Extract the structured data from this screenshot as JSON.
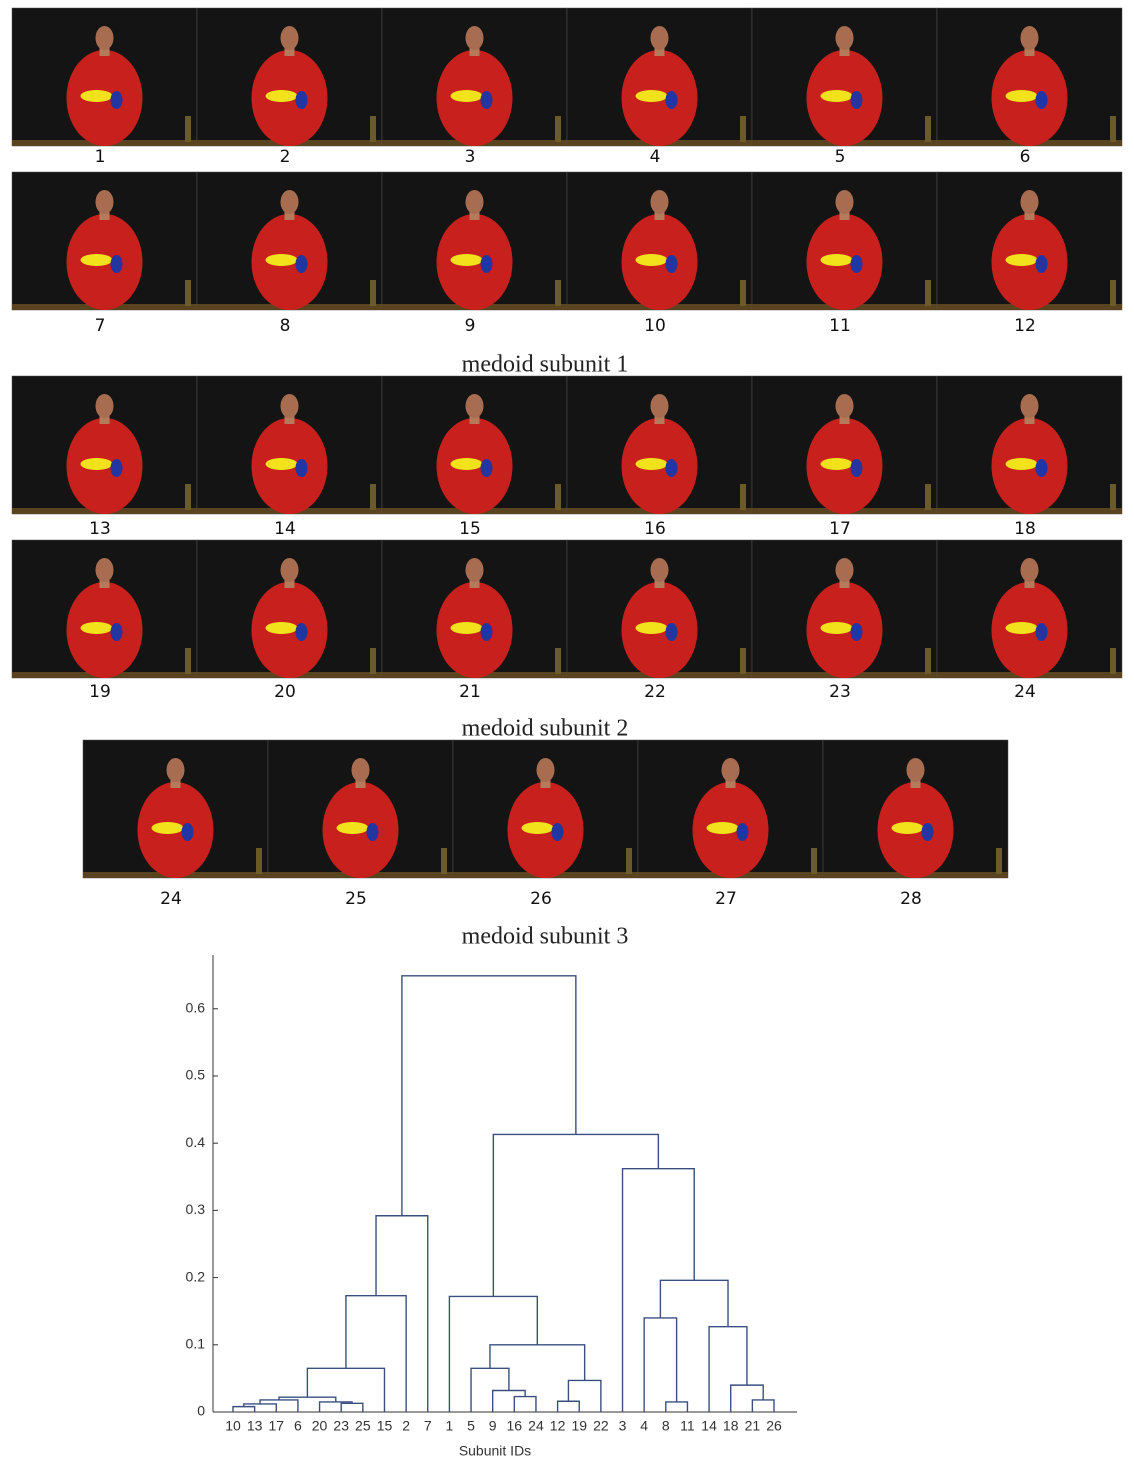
{
  "figure": {
    "groups": [
      {
        "rows": [
          [
            1,
            2,
            3,
            4,
            5,
            6
          ],
          [
            7,
            8,
            9,
            10,
            11,
            12
          ]
        ],
        "caption": "medoid subunit 1"
      },
      {
        "rows": [
          [
            13,
            14,
            15,
            16,
            17,
            18
          ],
          [
            19,
            20,
            21,
            22,
            23,
            24
          ]
        ],
        "caption": "medoid subunit 2"
      },
      {
        "rows": [
          [
            24,
            25,
            26,
            27,
            28
          ]
        ],
        "caption": "medoid subunit 3"
      }
    ]
  },
  "chart_data": {
    "type": "dendrogram",
    "xlabel": "Subunit IDs",
    "color": "#3a4f80",
    "leaves": [
      "10",
      "13",
      "17",
      "6",
      "20",
      "23",
      "25",
      "15",
      "2",
      "7",
      "1",
      "5",
      "9",
      "16",
      "24",
      "12",
      "19",
      "22",
      "3",
      "4",
      "8",
      "11",
      "14",
      "18",
      "21",
      "26"
    ],
    "links": [
      {
        "children": [
          0,
          1
        ],
        "height": 0.008
      },
      {
        "children": [
          26,
          2
        ],
        "height": 0.012
      },
      {
        "children": [
          27,
          3
        ],
        "height": 0.018
      },
      {
        "children": [
          5,
          6
        ],
        "height": 0.013
      },
      {
        "children": [
          4,
          29
        ],
        "height": 0.015
      },
      {
        "children": [
          28,
          30
        ],
        "height": 0.022
      },
      {
        "children": [
          31,
          7
        ],
        "height": 0.065
      },
      {
        "children": [
          32,
          8
        ],
        "height": 0.173
      },
      {
        "children": [
          33,
          9
        ],
        "height": 0.292
      },
      {
        "children": [
          13,
          14
        ],
        "height": 0.023
      },
      {
        "children": [
          12,
          35
        ],
        "height": 0.032
      },
      {
        "children": [
          11,
          36
        ],
        "height": 0.065
      },
      {
        "children": [
          15,
          16
        ],
        "height": 0.016
      },
      {
        "children": [
          38,
          17
        ],
        "height": 0.047
      },
      {
        "children": [
          37,
          39
        ],
        "height": 0.1
      },
      {
        "children": [
          10,
          40
        ],
        "height": 0.172
      },
      {
        "children": [
          20,
          21
        ],
        "height": 0.015
      },
      {
        "children": [
          19,
          42
        ],
        "height": 0.14
      },
      {
        "children": [
          24,
          25
        ],
        "height": 0.018
      },
      {
        "children": [
          23,
          44
        ],
        "height": 0.04
      },
      {
        "children": [
          22,
          45
        ],
        "height": 0.127
      },
      {
        "children": [
          43,
          46
        ],
        "height": 0.196
      },
      {
        "children": [
          18,
          47
        ],
        "height": 0.362
      },
      {
        "children": [
          41,
          48
        ],
        "height": 0.413
      },
      {
        "children": [
          34,
          49
        ],
        "height": 0.649
      }
    ],
    "ylim": [
      0,
      0.68
    ],
    "yticks": [
      0,
      0.1,
      0.2,
      0.3,
      0.4,
      0.5,
      0.6
    ]
  }
}
